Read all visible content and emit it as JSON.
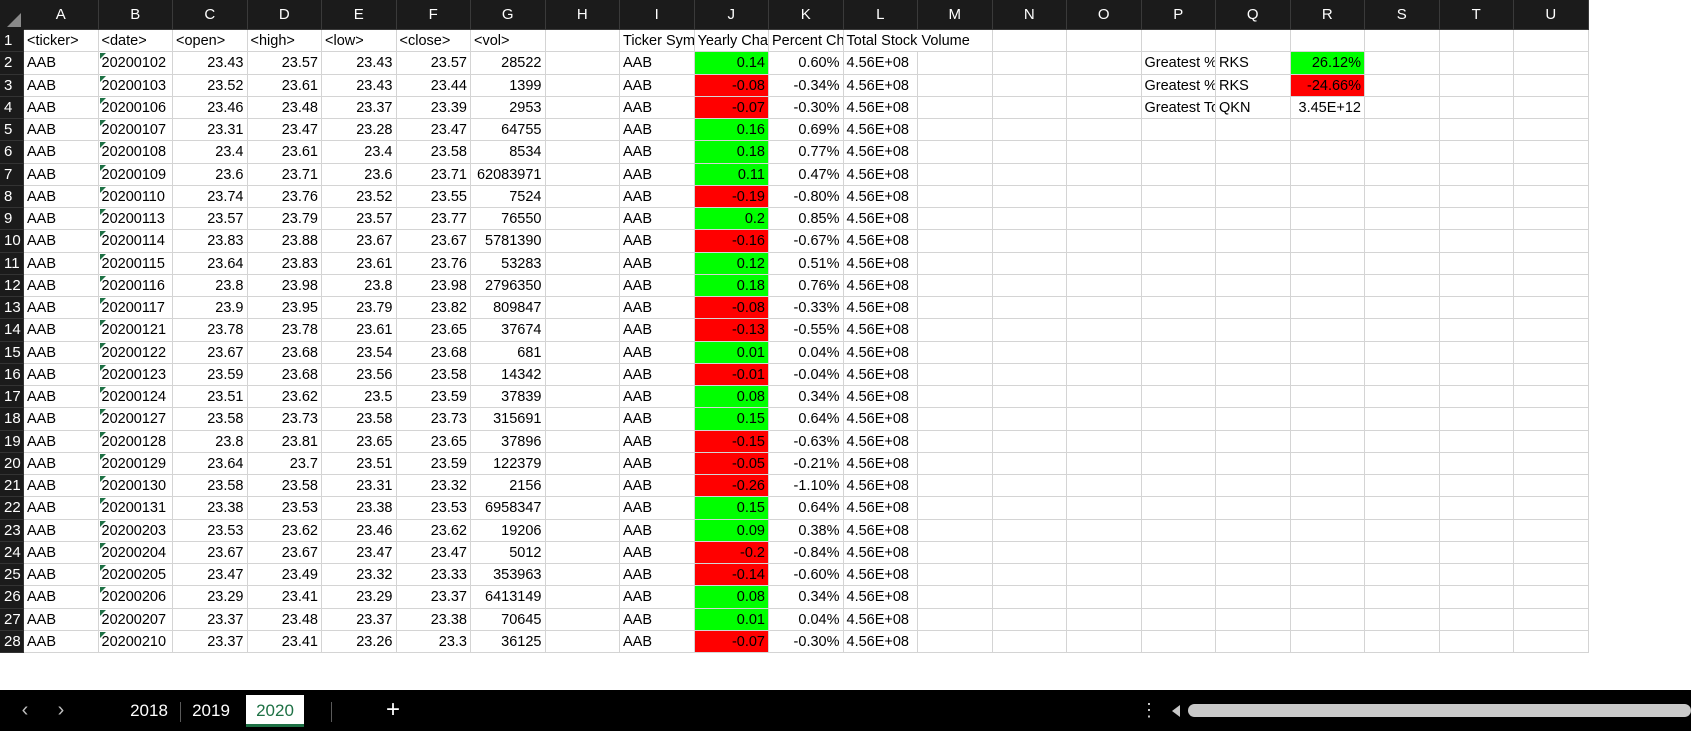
{
  "columns": [
    "A",
    "B",
    "C",
    "D",
    "E",
    "F",
    "G",
    "H",
    "I",
    "J",
    "K",
    "L",
    "M",
    "N",
    "O",
    "P",
    "Q",
    "R",
    "S",
    "T",
    "U"
  ],
  "header_row": {
    "A": "<ticker>",
    "B": "<date>",
    "C": "<open>",
    "D": "<high>",
    "E": "<low>",
    "F": "<close>",
    "G": "<vol>",
    "I": "Ticker Symbol",
    "J": "Yearly Change",
    "K": "Percent Change",
    "L": "Total Stock Volume"
  },
  "rows": [
    {
      "n": "2",
      "t": "AAB",
      "d": "20200102",
      "o": "23.43",
      "h": "23.57",
      "l": "23.43",
      "c": "23.57",
      "v": "28522",
      "i": "AAB",
      "j": "0.14",
      "jc": "green",
      "k": "0.60%",
      "tv": "4.56E+08"
    },
    {
      "n": "3",
      "t": "AAB",
      "d": "20200103",
      "o": "23.52",
      "h": "23.61",
      "l": "23.43",
      "c": "23.44",
      "v": "1399",
      "i": "AAB",
      "j": "-0.08",
      "jc": "red",
      "k": "-0.34%",
      "tv": "4.56E+08"
    },
    {
      "n": "4",
      "t": "AAB",
      "d": "20200106",
      "o": "23.46",
      "h": "23.48",
      "l": "23.37",
      "c": "23.39",
      "v": "2953",
      "i": "AAB",
      "j": "-0.07",
      "jc": "red",
      "k": "-0.30%",
      "tv": "4.56E+08"
    },
    {
      "n": "5",
      "t": "AAB",
      "d": "20200107",
      "o": "23.31",
      "h": "23.47",
      "l": "23.28",
      "c": "23.47",
      "v": "64755",
      "i": "AAB",
      "j": "0.16",
      "jc": "green",
      "k": "0.69%",
      "tv": "4.56E+08"
    },
    {
      "n": "6",
      "t": "AAB",
      "d": "20200108",
      "o": "23.4",
      "h": "23.61",
      "l": "23.4",
      "c": "23.58",
      "v": "8534",
      "i": "AAB",
      "j": "0.18",
      "jc": "green",
      "k": "0.77%",
      "tv": "4.56E+08"
    },
    {
      "n": "7",
      "t": "AAB",
      "d": "20200109",
      "o": "23.6",
      "h": "23.71",
      "l": "23.6",
      "c": "23.71",
      "v": "62083971",
      "i": "AAB",
      "j": "0.11",
      "jc": "green",
      "k": "0.47%",
      "tv": "4.56E+08"
    },
    {
      "n": "8",
      "t": "AAB",
      "d": "20200110",
      "o": "23.74",
      "h": "23.76",
      "l": "23.52",
      "c": "23.55",
      "v": "7524",
      "i": "AAB",
      "j": "-0.19",
      "jc": "red",
      "k": "-0.80%",
      "tv": "4.56E+08"
    },
    {
      "n": "9",
      "t": "AAB",
      "d": "20200113",
      "o": "23.57",
      "h": "23.79",
      "l": "23.57",
      "c": "23.77",
      "v": "76550",
      "i": "AAB",
      "j": "0.2",
      "jc": "green",
      "k": "0.85%",
      "tv": "4.56E+08"
    },
    {
      "n": "10",
      "t": "AAB",
      "d": "20200114",
      "o": "23.83",
      "h": "23.88",
      "l": "23.67",
      "c": "23.67",
      "v": "5781390",
      "i": "AAB",
      "j": "-0.16",
      "jc": "red",
      "k": "-0.67%",
      "tv": "4.56E+08"
    },
    {
      "n": "11",
      "t": "AAB",
      "d": "20200115",
      "o": "23.64",
      "h": "23.83",
      "l": "23.61",
      "c": "23.76",
      "v": "53283",
      "i": "AAB",
      "j": "0.12",
      "jc": "green",
      "k": "0.51%",
      "tv": "4.56E+08"
    },
    {
      "n": "12",
      "t": "AAB",
      "d": "20200116",
      "o": "23.8",
      "h": "23.98",
      "l": "23.8",
      "c": "23.98",
      "v": "2796350",
      "i": "AAB",
      "j": "0.18",
      "jc": "green",
      "k": "0.76%",
      "tv": "4.56E+08"
    },
    {
      "n": "13",
      "t": "AAB",
      "d": "20200117",
      "o": "23.9",
      "h": "23.95",
      "l": "23.79",
      "c": "23.82",
      "v": "809847",
      "i": "AAB",
      "j": "-0.08",
      "jc": "red",
      "k": "-0.33%",
      "tv": "4.56E+08"
    },
    {
      "n": "14",
      "t": "AAB",
      "d": "20200121",
      "o": "23.78",
      "h": "23.78",
      "l": "23.61",
      "c": "23.65",
      "v": "37674",
      "i": "AAB",
      "j": "-0.13",
      "jc": "red",
      "k": "-0.55%",
      "tv": "4.56E+08"
    },
    {
      "n": "15",
      "t": "AAB",
      "d": "20200122",
      "o": "23.67",
      "h": "23.68",
      "l": "23.54",
      "c": "23.68",
      "v": "681",
      "i": "AAB",
      "j": "0.01",
      "jc": "green",
      "k": "0.04%",
      "tv": "4.56E+08"
    },
    {
      "n": "16",
      "t": "AAB",
      "d": "20200123",
      "o": "23.59",
      "h": "23.68",
      "l": "23.56",
      "c": "23.58",
      "v": "14342",
      "i": "AAB",
      "j": "-0.01",
      "jc": "red",
      "k": "-0.04%",
      "tv": "4.56E+08"
    },
    {
      "n": "17",
      "t": "AAB",
      "d": "20200124",
      "o": "23.51",
      "h": "23.62",
      "l": "23.5",
      "c": "23.59",
      "v": "37839",
      "i": "AAB",
      "j": "0.08",
      "jc": "green",
      "k": "0.34%",
      "tv": "4.56E+08"
    },
    {
      "n": "18",
      "t": "AAB",
      "d": "20200127",
      "o": "23.58",
      "h": "23.73",
      "l": "23.58",
      "c": "23.73",
      "v": "315691",
      "i": "AAB",
      "j": "0.15",
      "jc": "green",
      "k": "0.64%",
      "tv": "4.56E+08"
    },
    {
      "n": "19",
      "t": "AAB",
      "d": "20200128",
      "o": "23.8",
      "h": "23.81",
      "l": "23.65",
      "c": "23.65",
      "v": "37896",
      "i": "AAB",
      "j": "-0.15",
      "jc": "red",
      "k": "-0.63%",
      "tv": "4.56E+08"
    },
    {
      "n": "20",
      "t": "AAB",
      "d": "20200129",
      "o": "23.64",
      "h": "23.7",
      "l": "23.51",
      "c": "23.59",
      "v": "122379",
      "i": "AAB",
      "j": "-0.05",
      "jc": "red",
      "k": "-0.21%",
      "tv": "4.56E+08"
    },
    {
      "n": "21",
      "t": "AAB",
      "d": "20200130",
      "o": "23.58",
      "h": "23.58",
      "l": "23.31",
      "c": "23.32",
      "v": "2156",
      "i": "AAB",
      "j": "-0.26",
      "jc": "red",
      "k": "-1.10%",
      "tv": "4.56E+08"
    },
    {
      "n": "22",
      "t": "AAB",
      "d": "20200131",
      "o": "23.38",
      "h": "23.53",
      "l": "23.38",
      "c": "23.53",
      "v": "6958347",
      "i": "AAB",
      "j": "0.15",
      "jc": "green",
      "k": "0.64%",
      "tv": "4.56E+08"
    },
    {
      "n": "23",
      "t": "AAB",
      "d": "20200203",
      "o": "23.53",
      "h": "23.62",
      "l": "23.46",
      "c": "23.62",
      "v": "19206",
      "i": "AAB",
      "j": "0.09",
      "jc": "green",
      "k": "0.38%",
      "tv": "4.56E+08"
    },
    {
      "n": "24",
      "t": "AAB",
      "d": "20200204",
      "o": "23.67",
      "h": "23.67",
      "l": "23.47",
      "c": "23.47",
      "v": "5012",
      "i": "AAB",
      "j": "-0.2",
      "jc": "red",
      "k": "-0.84%",
      "tv": "4.56E+08"
    },
    {
      "n": "25",
      "t": "AAB",
      "d": "20200205",
      "o": "23.47",
      "h": "23.49",
      "l": "23.32",
      "c": "23.33",
      "v": "353963",
      "i": "AAB",
      "j": "-0.14",
      "jc": "red",
      "k": "-0.60%",
      "tv": "4.56E+08"
    },
    {
      "n": "26",
      "t": "AAB",
      "d": "20200206",
      "o": "23.29",
      "h": "23.41",
      "l": "23.29",
      "c": "23.37",
      "v": "6413149",
      "i": "AAB",
      "j": "0.08",
      "jc": "green",
      "k": "0.34%",
      "tv": "4.56E+08"
    },
    {
      "n": "27",
      "t": "AAB",
      "d": "20200207",
      "o": "23.37",
      "h": "23.48",
      "l": "23.37",
      "c": "23.38",
      "v": "70645",
      "i": "AAB",
      "j": "0.01",
      "jc": "green",
      "k": "0.04%",
      "tv": "4.56E+08"
    },
    {
      "n": "28",
      "t": "AAB",
      "d": "20200210",
      "o": "23.37",
      "h": "23.41",
      "l": "23.26",
      "c": "23.3",
      "v": "36125",
      "i": "AAB",
      "j": "-0.07",
      "jc": "red",
      "k": "-0.30%",
      "tv": "4.56E+08"
    }
  ],
  "summary": [
    {
      "label": "Greatest % Increase",
      "ticker": "RKS",
      "value": "26.12%",
      "color": "green"
    },
    {
      "label": "Greatest % Decrease",
      "ticker": "RKS",
      "value": "-24.66%",
      "color": "red"
    },
    {
      "label": "Greatest Total Volume",
      "ticker": "QKN",
      "value": "3.45E+12",
      "color": ""
    }
  ],
  "colors": {
    "green": "#00ff00",
    "red": "#ff0000",
    "accent": "#1e7145"
  },
  "sheet_tabs": [
    {
      "label": "2018",
      "active": false
    },
    {
      "label": "2019",
      "active": false
    },
    {
      "label": "2020",
      "active": true
    }
  ],
  "icons": {
    "prev_sheet": "chevron-left-icon",
    "next_sheet": "chevron-right-icon",
    "add_sheet": "plus-icon",
    "more": "more-vertical-icon"
  }
}
